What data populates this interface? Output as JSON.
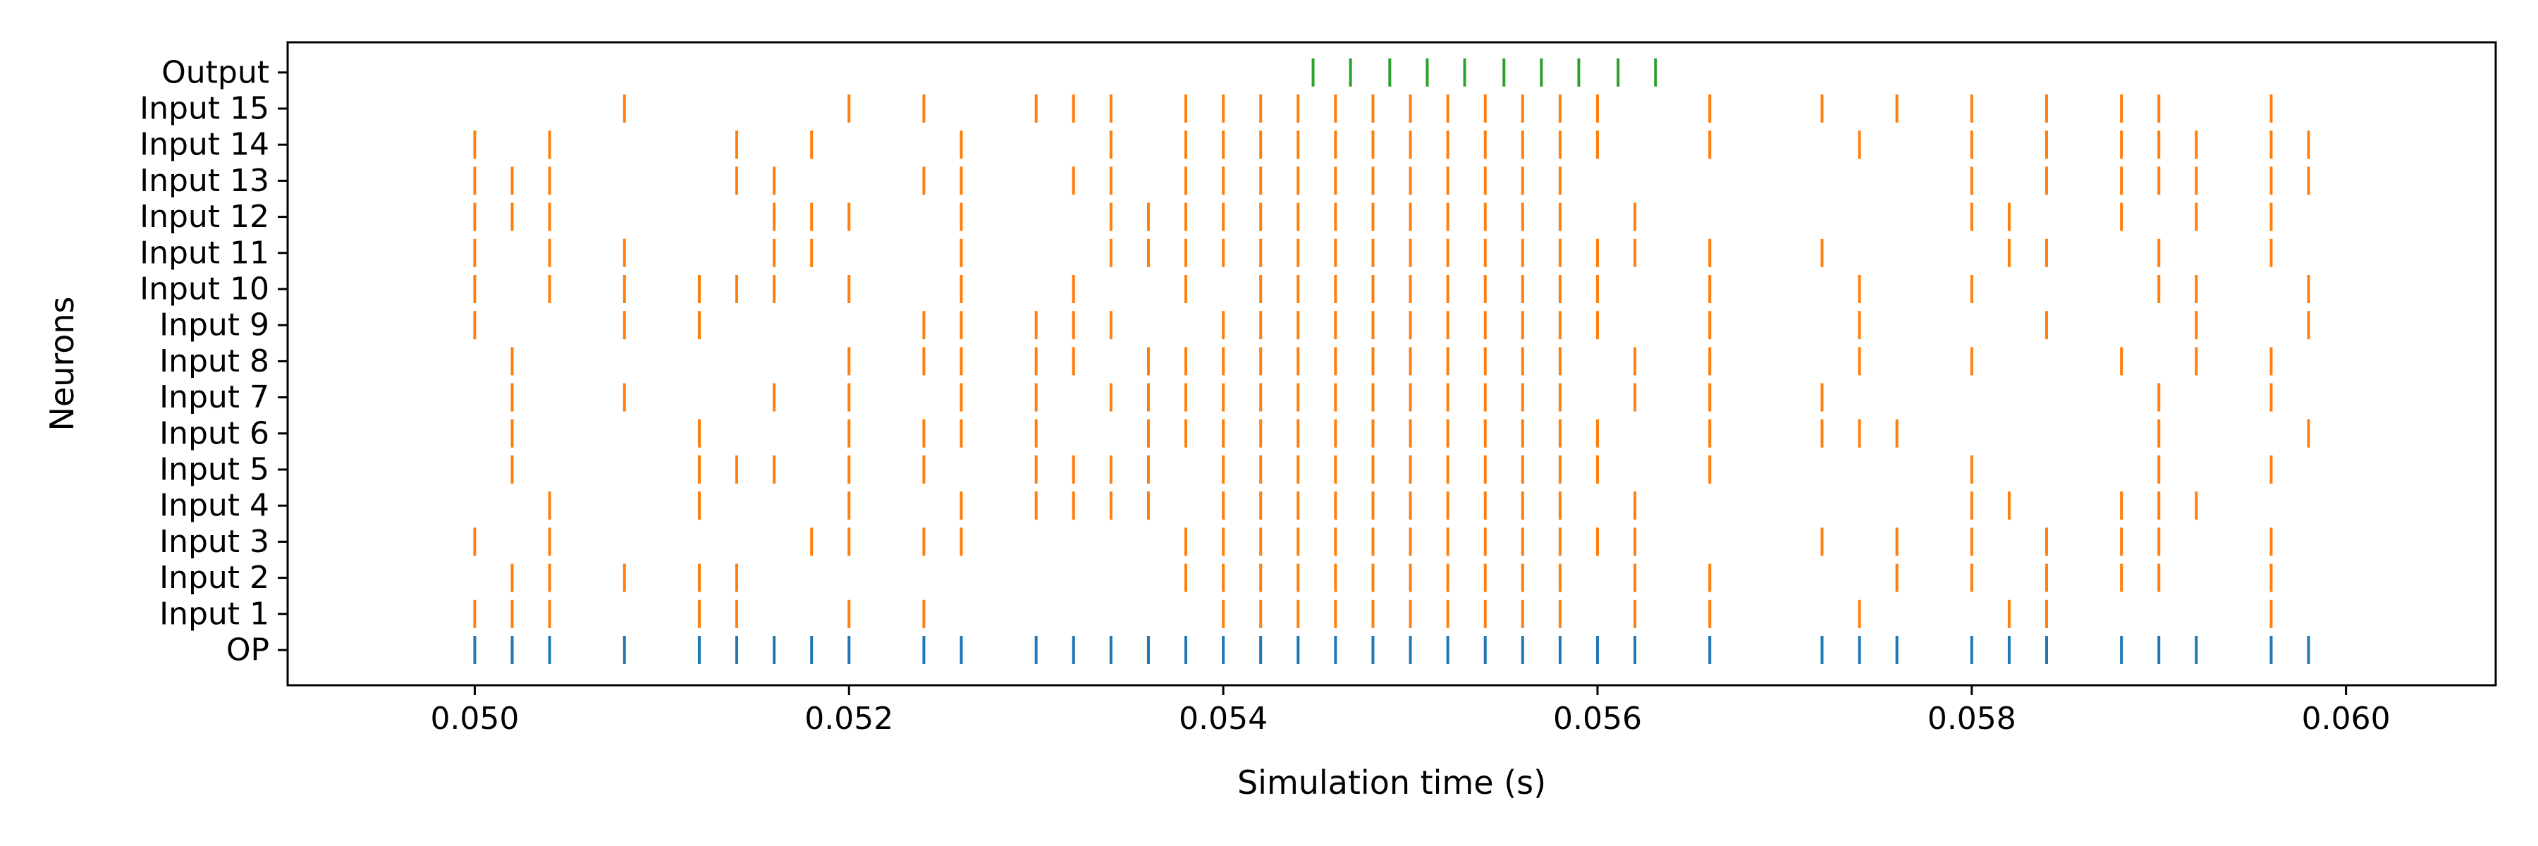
{
  "chart_data": {
    "type": "raster",
    "title": "",
    "xlabel": "Simulation time (s)",
    "ylabel": "Neurons",
    "xlim": [
      0.049,
      0.0608
    ],
    "xticks": [
      0.05,
      0.052,
      0.054,
      0.056,
      0.058,
      0.06
    ],
    "xtick_labels": [
      "0.050",
      "0.052",
      "0.054",
      "0.056",
      "0.058",
      "0.060"
    ],
    "neurons": [
      "OP",
      "Input 1",
      "Input 2",
      "Input 3",
      "Input 4",
      "Input 5",
      "Input 6",
      "Input 7",
      "Input 8",
      "Input 9",
      "Input 10",
      "Input 11",
      "Input 12",
      "Input 13",
      "Input 14",
      "Input 15",
      "Output"
    ],
    "colors": {
      "OP": "#1f77b4",
      "Input": "#ff7f0e",
      "Output": "#2ca02c"
    },
    "spikes": {
      "OP": [
        0.05,
        0.0502,
        0.0504,
        0.0508,
        0.0512,
        0.0514,
        0.0516,
        0.0518,
        0.052,
        0.0524,
        0.0526,
        0.053,
        0.0532,
        0.0534,
        0.0536,
        0.0538,
        0.054,
        0.0542,
        0.0544,
        0.0546,
        0.0548,
        0.055,
        0.0552,
        0.0554,
        0.0556,
        0.0558,
        0.056,
        0.0562,
        0.0566,
        0.0572,
        0.0574,
        0.0576,
        0.058,
        0.0582,
        0.0584,
        0.0588,
        0.059,
        0.0592,
        0.0596,
        0.0598
      ],
      "Input 1": [
        0.05,
        0.0502,
        0.0504,
        0.0512,
        0.0514,
        0.052,
        0.0524,
        0.054,
        0.0542,
        0.0544,
        0.0546,
        0.0548,
        0.055,
        0.0552,
        0.0554,
        0.0556,
        0.0558,
        0.0562,
        0.0566,
        0.0574,
        0.0582,
        0.0584,
        0.0596
      ],
      "Input 2": [
        0.0502,
        0.0504,
        0.0508,
        0.0512,
        0.0514,
        0.0538,
        0.054,
        0.0542,
        0.0544,
        0.0546,
        0.0548,
        0.055,
        0.0552,
        0.0554,
        0.0556,
        0.0558,
        0.0562,
        0.0566,
        0.0576,
        0.058,
        0.0584,
        0.0588,
        0.059,
        0.0596
      ],
      "Input 3": [
        0.05,
        0.0504,
        0.0518,
        0.052,
        0.0524,
        0.0526,
        0.0538,
        0.054,
        0.0542,
        0.0544,
        0.0546,
        0.0548,
        0.055,
        0.0552,
        0.0554,
        0.0556,
        0.0558,
        0.056,
        0.0562,
        0.0572,
        0.0576,
        0.058,
        0.0584,
        0.0588,
        0.059,
        0.0596
      ],
      "Input 4": [
        0.0504,
        0.0512,
        0.052,
        0.0526,
        0.053,
        0.0532,
        0.0534,
        0.0536,
        0.054,
        0.0542,
        0.0544,
        0.0546,
        0.0548,
        0.055,
        0.0552,
        0.0554,
        0.0556,
        0.0558,
        0.0562,
        0.058,
        0.0582,
        0.0588,
        0.059,
        0.0592
      ],
      "Input 5": [
        0.0502,
        0.0512,
        0.0514,
        0.0516,
        0.052,
        0.0524,
        0.053,
        0.0532,
        0.0534,
        0.0536,
        0.054,
        0.0542,
        0.0544,
        0.0546,
        0.0548,
        0.055,
        0.0552,
        0.0554,
        0.0556,
        0.0558,
        0.056,
        0.0566,
        0.058,
        0.059,
        0.0596
      ],
      "Input 6": [
        0.0502,
        0.0512,
        0.052,
        0.0524,
        0.0526,
        0.053,
        0.0536,
        0.0538,
        0.054,
        0.0542,
        0.0544,
        0.0546,
        0.0548,
        0.055,
        0.0552,
        0.0554,
        0.0556,
        0.0558,
        0.056,
        0.0566,
        0.0572,
        0.0574,
        0.0576,
        0.059,
        0.0598
      ],
      "Input 7": [
        0.0502,
        0.0508,
        0.0516,
        0.052,
        0.0526,
        0.053,
        0.0534,
        0.0536,
        0.0538,
        0.054,
        0.0542,
        0.0544,
        0.0546,
        0.0548,
        0.055,
        0.0552,
        0.0554,
        0.0556,
        0.0558,
        0.0562,
        0.0566,
        0.0572,
        0.059,
        0.0596
      ],
      "Input 8": [
        0.0502,
        0.052,
        0.0524,
        0.0526,
        0.053,
        0.0532,
        0.0536,
        0.0538,
        0.054,
        0.0542,
        0.0544,
        0.0546,
        0.0548,
        0.055,
        0.0552,
        0.0554,
        0.0556,
        0.0558,
        0.0562,
        0.0566,
        0.0574,
        0.058,
        0.0588,
        0.0592,
        0.0596
      ],
      "Input 9": [
        0.05,
        0.0508,
        0.0512,
        0.0524,
        0.0526,
        0.053,
        0.0532,
        0.0534,
        0.054,
        0.0542,
        0.0544,
        0.0546,
        0.0548,
        0.055,
        0.0552,
        0.0554,
        0.0556,
        0.0558,
        0.056,
        0.0566,
        0.0574,
        0.0584,
        0.0592,
        0.0598
      ],
      "Input 10": [
        0.05,
        0.0504,
        0.0508,
        0.0512,
        0.0514,
        0.0516,
        0.052,
        0.0526,
        0.0532,
        0.0538,
        0.0542,
        0.0544,
        0.0546,
        0.0548,
        0.055,
        0.0552,
        0.0554,
        0.0556,
        0.0558,
        0.056,
        0.0566,
        0.0574,
        0.058,
        0.059,
        0.0592,
        0.0598
      ],
      "Input 11": [
        0.05,
        0.0504,
        0.0508,
        0.0516,
        0.0518,
        0.0526,
        0.0534,
        0.0536,
        0.0538,
        0.054,
        0.0542,
        0.0544,
        0.0546,
        0.0548,
        0.055,
        0.0552,
        0.0554,
        0.0556,
        0.0558,
        0.056,
        0.0562,
        0.0566,
        0.0572,
        0.0582,
        0.0584,
        0.059,
        0.0596
      ],
      "Input 12": [
        0.05,
        0.0502,
        0.0504,
        0.0516,
        0.0518,
        0.052,
        0.0526,
        0.0534,
        0.0536,
        0.0538,
        0.054,
        0.0542,
        0.0544,
        0.0546,
        0.0548,
        0.055,
        0.0552,
        0.0554,
        0.0556,
        0.0558,
        0.0562,
        0.058,
        0.0582,
        0.0588,
        0.0592,
        0.0596
      ],
      "Input 13": [
        0.05,
        0.0502,
        0.0504,
        0.0514,
        0.0516,
        0.0524,
        0.0526,
        0.0532,
        0.0534,
        0.0538,
        0.054,
        0.0542,
        0.0544,
        0.0546,
        0.0548,
        0.055,
        0.0552,
        0.0554,
        0.0556,
        0.0558,
        0.058,
        0.0584,
        0.0588,
        0.059,
        0.0592,
        0.0596,
        0.0598
      ],
      "Input 14": [
        0.05,
        0.0504,
        0.0514,
        0.0518,
        0.0526,
        0.0534,
        0.0538,
        0.054,
        0.0542,
        0.0544,
        0.0546,
        0.0548,
        0.055,
        0.0552,
        0.0554,
        0.0556,
        0.0558,
        0.056,
        0.0566,
        0.0574,
        0.058,
        0.0584,
        0.0588,
        0.059,
        0.0592,
        0.0596,
        0.0598
      ],
      "Input 15": [
        0.0508,
        0.052,
        0.0524,
        0.053,
        0.0532,
        0.0534,
        0.0538,
        0.054,
        0.0542,
        0.0544,
        0.0546,
        0.0548,
        0.055,
        0.0552,
        0.0554,
        0.0556,
        0.0558,
        0.056,
        0.0566,
        0.0572,
        0.0576,
        0.058,
        0.0584,
        0.0588,
        0.059,
        0.0596
      ],
      "Output": [
        0.05448,
        0.05468,
        0.05489,
        0.05509,
        0.05529,
        0.0555,
        0.0557,
        0.0559,
        0.05611,
        0.05631
      ]
    }
  }
}
